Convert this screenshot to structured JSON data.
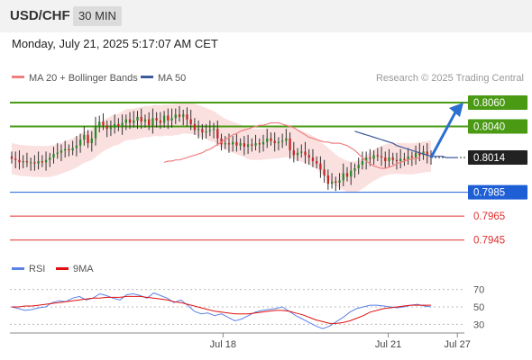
{
  "header": {
    "symbol": "USD/CHF",
    "timeframe": "30 MIN"
  },
  "timestamp": "Monday, July 21, 2025 5:17:07 AM CET",
  "legend": {
    "ma20_bb": "MA 20 + Bollinger Bands",
    "ma50": "MA 50",
    "credit": "Research © 2025 Trading Central"
  },
  "colors": {
    "green": "#4a9a14",
    "blue": "#1e5fd6",
    "red": "#e03030",
    "candle_up": "#2a8a2a",
    "candle_down": "#c62828",
    "band_fill": "#fbe0e0",
    "ma20": "#f08080",
    "ma50": "#3d5a9a",
    "arrow": "#2b6fd0",
    "rsi": "#5b82e6",
    "rsi_ma": "#e01010"
  },
  "chart_data": [
    {
      "type": "line",
      "subtype": "candlestick",
      "title": "USD/CHF 30 MIN",
      "y_scale_note": "y in price units",
      "ylim": [
        0.7935,
        0.8072
      ],
      "x_tick_labels": [
        "Jul 18",
        "Jul 21",
        "Jul 27"
      ],
      "x_tick_index": [
        55,
        98,
        116
      ],
      "x_range": [
        0,
        119
      ],
      "closes": [
        0.8013,
        0.8012,
        0.801,
        0.8011,
        0.801,
        0.801,
        0.8009,
        0.8011,
        0.801,
        0.8012,
        0.8014,
        0.8017,
        0.8018,
        0.802,
        0.8021,
        0.802,
        0.8022,
        0.8024,
        0.8029,
        0.8033,
        0.8026,
        0.803,
        0.804,
        0.8044,
        0.8041,
        0.8038,
        0.8039,
        0.8042,
        0.804,
        0.8043,
        0.8046,
        0.8043,
        0.8045,
        0.8048,
        0.8044,
        0.8046,
        0.8041,
        0.8047,
        0.8045,
        0.8043,
        0.8049,
        0.8045,
        0.8047,
        0.805,
        0.8048,
        0.805,
        0.8046,
        0.8042,
        0.8037,
        0.8038,
        0.8035,
        0.8036,
        0.8037,
        0.8038,
        0.803,
        0.8025,
        0.8026,
        0.8025,
        0.8027,
        0.8024,
        0.8026,
        0.8023,
        0.8025,
        0.8024,
        0.8026,
        0.8025,
        0.8027,
        0.803,
        0.8028,
        0.8026,
        0.8027,
        0.8028,
        0.803,
        0.802,
        0.8016,
        0.8018,
        0.8019,
        0.8016,
        0.8014,
        0.8011,
        0.8009,
        0.8004,
        0.7999,
        0.7992,
        0.7994,
        0.7993,
        0.7995,
        0.8001,
        0.7998,
        0.8003,
        0.8005,
        0.8008,
        0.8011,
        0.8014,
        0.8013,
        0.8016,
        0.8015,
        0.8014,
        0.8011,
        0.8014,
        0.8012,
        0.8011,
        0.8013,
        0.8012,
        0.8015,
        0.8014,
        0.8018,
        0.8016,
        0.8019,
        0.8016,
        0.8014
      ],
      "ma20": [
        0.801,
        0.8011,
        0.8011,
        0.8012,
        0.8012,
        0.8013,
        0.8014,
        0.8015,
        0.8016,
        0.8017,
        0.8018,
        0.802,
        0.8021,
        0.8023,
        0.8025,
        0.8027,
        0.8029,
        0.8031,
        0.8033,
        0.8034,
        0.8036,
        0.8037,
        0.8038,
        0.8039,
        0.804,
        0.8041,
        0.8041,
        0.8042,
        0.8043,
        0.8043,
        0.8043,
        0.8042,
        0.8041,
        0.804,
        0.8039,
        0.8037,
        0.8035,
        0.8033,
        0.8031,
        0.803,
        0.8029,
        0.8028,
        0.8027,
        0.8027,
        0.8026,
        0.8026,
        0.8026,
        0.8025,
        0.8024,
        0.8022,
        0.802,
        0.8017,
        0.8014,
        0.8011,
        0.8009,
        0.8007,
        0.8006,
        0.8005,
        0.8005,
        0.8006,
        0.8007,
        0.8009,
        0.801,
        0.8011,
        0.8012,
        0.8013,
        0.8013,
        0.8014
      ],
      "ma20_start_index": 40,
      "ma50": [
        0.8036,
        0.8035,
        0.8034,
        0.8033,
        0.8032,
        0.8031,
        0.803,
        0.8029,
        0.8028,
        0.8027,
        0.8026,
        0.8024,
        0.8023,
        0.8022,
        0.8021,
        0.802,
        0.8019,
        0.8018,
        0.8017,
        0.8016,
        0.8015,
        0.8015,
        0.8015,
        0.8015,
        0.8014,
        0.8014,
        0.8014,
        0.8014
      ],
      "ma50_start_index": 90,
      "levels": [
        {
          "label": "0.8060",
          "value": 0.806,
          "kind": "resistance"
        },
        {
          "label": "0.8040",
          "value": 0.804,
          "kind": "resistance"
        },
        {
          "label": "0.8014",
          "value": 0.8014,
          "kind": "last"
        },
        {
          "label": "0.7985",
          "value": 0.7985,
          "kind": "support"
        },
        {
          "label": "0.7965",
          "value": 0.7965,
          "kind": "support2"
        },
        {
          "label": "0.7945",
          "value": 0.7945,
          "kind": "support2"
        }
      ]
    },
    {
      "type": "line",
      "title": "RSI",
      "series": [
        {
          "name": "RSI",
          "values": [
            50,
            48,
            46,
            47,
            49,
            50,
            55,
            57,
            56,
            60,
            62,
            58,
            60,
            65,
            63,
            60,
            58,
            64,
            65,
            63,
            60,
            66,
            63,
            60,
            55,
            58,
            52,
            45,
            42,
            43,
            40,
            42,
            38,
            34,
            36,
            40,
            44,
            46,
            47,
            48,
            50,
            45,
            40,
            36,
            32,
            28,
            25,
            28,
            33,
            38,
            44,
            48,
            50,
            52,
            52,
            51,
            50,
            49,
            50,
            52,
            53,
            51,
            50
          ]
        },
        {
          "name": "9MA",
          "values": [
            50,
            50,
            51,
            51,
            52,
            53,
            54,
            55,
            56,
            57,
            58,
            59,
            60,
            60,
            61,
            61,
            61,
            62,
            62,
            62,
            61,
            60,
            59,
            58,
            56,
            55,
            53,
            51,
            49,
            47,
            45,
            44,
            43,
            42,
            42,
            42,
            43,
            44,
            45,
            46,
            46,
            45,
            43,
            41,
            38,
            35,
            33,
            31,
            31,
            32,
            34,
            37,
            40,
            44,
            46,
            48,
            49,
            50,
            51,
            52,
            52,
            52,
            52
          ]
        }
      ],
      "yticks": [
        "70",
        "50",
        "30"
      ],
      "ylim": [
        20,
        80
      ]
    }
  ],
  "rsi_legend": {
    "rsi": "RSI",
    "ma": "9MA"
  }
}
